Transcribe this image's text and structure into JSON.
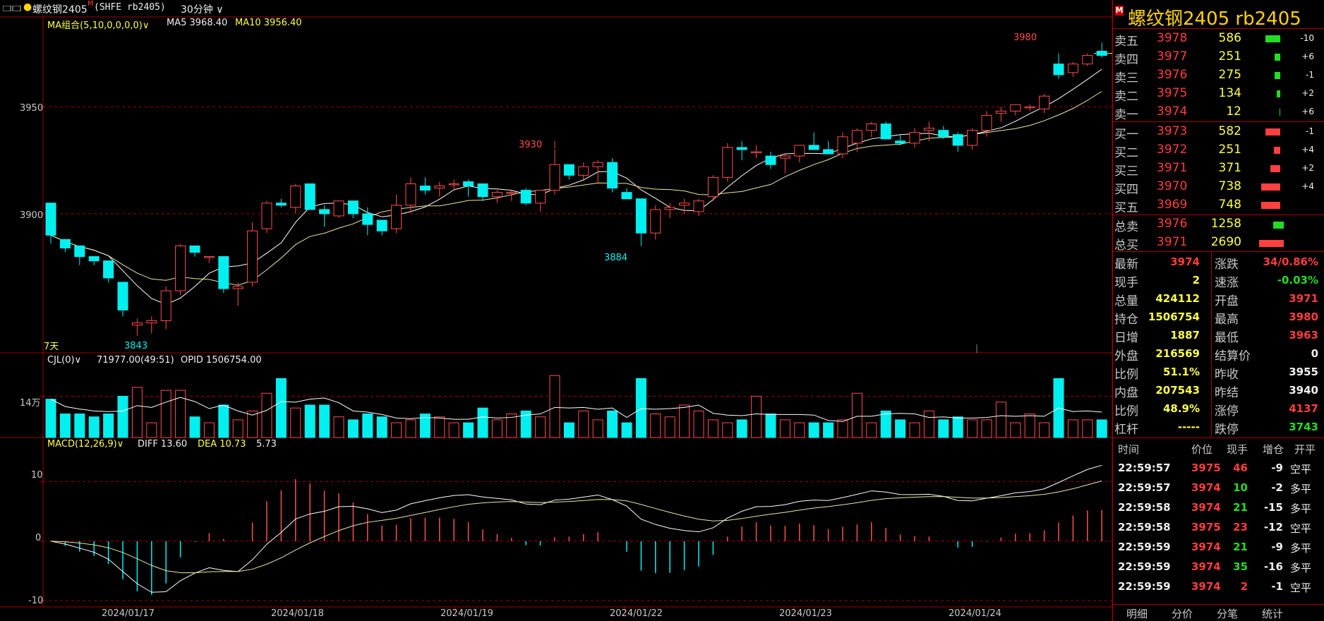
{
  "toolbar": {
    "symbol": "螺纹钢2405",
    "superscript": "M",
    "code": "(SHFE rb2405)",
    "period": "30分钟"
  },
  "main_pane": {
    "indicator_label": "MA组合(5,10,0,0,0,0)",
    "ma5": "MA5 3968.40",
    "ma10": "MA10 3956.40",
    "range_label": "7天",
    "y_ticks": [
      "3950",
      "3900"
    ],
    "markers": {
      "high": "3930",
      "high2": "3980",
      "low": "3843",
      "low2": "3884"
    }
  },
  "volume_pane": {
    "label": "CJL(0)",
    "value": "71977.00(49:51)",
    "opid": "OPID 1506754.00",
    "y_tick": "14万"
  },
  "macd_pane": {
    "label": "MACD(12,26,9)",
    "diff": "DIFF 13.60",
    "dea": "DEA 10.73",
    "macd": "5.73",
    "y_ticks": [
      "10",
      "0",
      "-10"
    ]
  },
  "x_axis": [
    "2024/01/17",
    "2024/01/18",
    "2024/01/19",
    "2024/01/22",
    "2024/01/23",
    "2024/01/24"
  ],
  "chart_data": {
    "type": "candlestick",
    "title": "螺纹钢2405 30分钟",
    "ohlc": [
      [
        3905,
        3905,
        3886,
        3890
      ],
      [
        3888,
        3888,
        3882,
        3884
      ],
      [
        3885,
        3885,
        3876,
        3880
      ],
      [
        3880,
        3880,
        3876,
        3878
      ],
      [
        3878,
        3878,
        3868,
        3870
      ],
      [
        3868,
        3868,
        3852,
        3855
      ],
      [
        3848,
        3851,
        3843,
        3849
      ],
      [
        3849,
        3852,
        3844,
        3850
      ],
      [
        3850,
        3866,
        3846,
        3864
      ],
      [
        3864,
        3886,
        3862,
        3885
      ],
      [
        3885,
        3885,
        3880,
        3882
      ],
      [
        3880,
        3880,
        3877,
        3880
      ],
      [
        3880,
        3880,
        3863,
        3865
      ],
      [
        3865,
        3868,
        3857,
        3866
      ],
      [
        3868,
        3896,
        3866,
        3892
      ],
      [
        3893,
        3906,
        3891,
        3905
      ],
      [
        3905,
        3907,
        3903,
        3904
      ],
      [
        3903,
        3914,
        3900,
        3913
      ],
      [
        3914,
        3914,
        3902,
        3902
      ],
      [
        3902,
        3904,
        3894,
        3900
      ],
      [
        3899,
        3906,
        3898,
        3906
      ],
      [
        3906,
        3906,
        3898,
        3900
      ],
      [
        3900,
        3903,
        3890,
        3895
      ],
      [
        3897,
        3897,
        3890,
        3892
      ],
      [
        3893,
        3909,
        3891,
        3904
      ],
      [
        3904,
        3917,
        3901,
        3914
      ],
      [
        3913,
        3917,
        3909,
        3911
      ],
      [
        3912,
        3915,
        3908,
        3913
      ],
      [
        3914,
        3916,
        3911,
        3914
      ],
      [
        3915,
        3916,
        3908,
        3913
      ],
      [
        3914,
        3914,
        3906,
        3908
      ],
      [
        3908,
        3911,
        3905,
        3910
      ],
      [
        3910,
        3911,
        3906,
        3910
      ],
      [
        3911,
        3912,
        3904,
        3905
      ],
      [
        3905,
        3911,
        3901,
        3911
      ],
      [
        3911,
        3930,
        3909,
        3923
      ],
      [
        3923,
        3923,
        3916,
        3918
      ],
      [
        3918,
        3924,
        3916,
        3922
      ],
      [
        3922,
        3925,
        3914,
        3924
      ],
      [
        3924,
        3926,
        3910,
        3912
      ],
      [
        3910,
        3912,
        3907,
        3907
      ],
      [
        3907,
        3907,
        3885,
        3891
      ],
      [
        3891,
        3904,
        3888,
        3902
      ],
      [
        3902,
        3905,
        3898,
        3903
      ],
      [
        3904,
        3907,
        3900,
        3905
      ],
      [
        3901,
        3907,
        3899,
        3906
      ],
      [
        3908,
        3918,
        3906,
        3917
      ],
      [
        3917,
        3933,
        3915,
        3931
      ],
      [
        3931,
        3934,
        3925,
        3930
      ],
      [
        3929,
        3932,
        3926,
        3929
      ],
      [
        3927,
        3929,
        3921,
        3923
      ],
      [
        3926,
        3928,
        3919,
        3927
      ],
      [
        3927,
        3932,
        3924,
        3932
      ],
      [
        3932,
        3938,
        3931,
        3930
      ],
      [
        3930,
        3934,
        3928,
        3928
      ],
      [
        3928,
        3938,
        3926,
        3936
      ],
      [
        3933,
        3940,
        3929,
        3939
      ],
      [
        3939,
        3943,
        3936,
        3942
      ],
      [
        3942,
        3943,
        3935,
        3935
      ],
      [
        3934,
        3937,
        3932,
        3933
      ],
      [
        3933,
        3940,
        3931,
        3938
      ],
      [
        3939,
        3943,
        3934,
        3940
      ],
      [
        3939,
        3941,
        3935,
        3936
      ],
      [
        3937,
        3938,
        3929,
        3932
      ],
      [
        3932,
        3940,
        3930,
        3939
      ],
      [
        3939,
        3948,
        3936,
        3946
      ],
      [
        3947,
        3950,
        3943,
        3948
      ],
      [
        3948,
        3951,
        3946,
        3951
      ],
      [
        3950,
        3951,
        3948,
        3950
      ],
      [
        3949,
        3956,
        3947,
        3955
      ],
      [
        3970,
        3975,
        3963,
        3965
      ],
      [
        3966,
        3971,
        3964,
        3970
      ],
      [
        3970,
        3975,
        3969,
        3974
      ],
      [
        3976,
        3980,
        3973,
        3974
      ]
    ],
    "volume_10k": [
      13,
      8,
      8,
      7,
      8,
      14,
      17,
      5,
      16,
      16,
      7,
      5,
      11,
      6,
      9,
      15,
      20,
      10,
      11,
      11,
      7,
      6,
      8,
      7,
      5,
      6,
      8,
      7,
      5,
      5,
      10,
      6,
      8,
      9,
      7,
      21,
      5,
      9,
      6,
      9,
      5,
      20,
      8,
      7,
      11,
      9,
      6,
      5,
      6,
      14,
      8,
      6,
      5,
      5,
      5,
      6,
      15,
      5,
      9,
      6,
      5,
      9,
      6,
      7,
      6,
      6,
      12,
      5,
      8,
      5,
      20,
      6,
      6,
      6
    ],
    "ma5": [],
    "macd": {
      "diff_last": 13.6,
      "dea_last": 10.73,
      "macd_last": 5.73
    }
  },
  "quote": {
    "title": "螺纹钢2405  rb2405",
    "title_badge": "M",
    "asks": [
      {
        "label": "卖五",
        "price": "3978",
        "vol": "586",
        "chg": "-10",
        "bar": 0.45,
        "color": "grn"
      },
      {
        "label": "卖四",
        "price": "3977",
        "vol": "251",
        "chg": "+6",
        "bar": 0.18,
        "color": "grn"
      },
      {
        "label": "卖三",
        "price": "3976",
        "vol": "275",
        "chg": "-1",
        "bar": 0.18,
        "color": "grn"
      },
      {
        "label": "卖二",
        "price": "3975",
        "vol": "134",
        "chg": "+2",
        "bar": 0.1,
        "color": "grn"
      },
      {
        "label": "卖一",
        "price": "3974",
        "vol": "12",
        "chg": "+6",
        "bar": 0.02,
        "color": "grn"
      }
    ],
    "bids": [
      {
        "label": "买一",
        "price": "3973",
        "vol": "582",
        "chg": "-1",
        "bar": 0.45,
        "color": "red"
      },
      {
        "label": "买二",
        "price": "3972",
        "vol": "251",
        "chg": "+4",
        "bar": 0.2,
        "color": "red"
      },
      {
        "label": "买三",
        "price": "3971",
        "vol": "371",
        "chg": "+2",
        "bar": 0.3,
        "color": "red"
      },
      {
        "label": "买四",
        "price": "3970",
        "vol": "738",
        "chg": "+4",
        "bar": 0.58,
        "color": "red"
      },
      {
        "label": "买五",
        "price": "3969",
        "vol": "748",
        "chg": "",
        "bar": 0.58,
        "color": "red"
      }
    ],
    "totals": [
      {
        "label": "总卖",
        "price": "3976",
        "vol": "1258",
        "bar": 0.3,
        "color": "grn"
      },
      {
        "label": "总买",
        "price": "3971",
        "vol": "2690",
        "bar": 0.7,
        "color": "red"
      }
    ],
    "stats": [
      {
        "l1": "最新",
        "v1": "3974",
        "c1": "red",
        "l2": "涨跌",
        "v2": "34/0.86%",
        "c2": "red"
      },
      {
        "l1": "现手",
        "v1": "2",
        "c1": "yel",
        "l2": "速涨",
        "v2": "-0.03%",
        "c2": "grn"
      },
      {
        "l1": "总量",
        "v1": "424112",
        "c1": "yel",
        "l2": "开盘",
        "v2": "3971",
        "c2": "red"
      },
      {
        "l1": "持仓",
        "v1": "1506754",
        "c1": "yel",
        "l2": "最高",
        "v2": "3980",
        "c2": "red"
      },
      {
        "l1": "日增",
        "v1": "1887",
        "c1": "yel",
        "l2": "最低",
        "v2": "3963",
        "c2": "red"
      },
      {
        "l1": "外盘",
        "v1": "216569",
        "c1": "yel",
        "l2": "结算价",
        "v2": "0",
        "c2": "wht"
      },
      {
        "l1": "比例",
        "v1": "51.1%",
        "c1": "yel",
        "l2": "昨收",
        "v2": "3955",
        "c2": "wht"
      },
      {
        "l1": "内盘",
        "v1": "207543",
        "c1": "yel",
        "l2": "昨结",
        "v2": "3940",
        "c2": "wht"
      },
      {
        "l1": "比例",
        "v1": "48.9%",
        "c1": "yel",
        "l2": "涨停",
        "v2": "4137",
        "c2": "red"
      },
      {
        "l1": "杠杆",
        "v1": "-----",
        "c1": "yel",
        "l2": "跌停",
        "v2": "3743",
        "c2": "grn"
      }
    ],
    "ticks_header": [
      "时间",
      "价位",
      "现手",
      "增仓",
      "开平"
    ],
    "ticks": [
      {
        "time": "22:59:57",
        "price": "3975",
        "vol": "46",
        "vc": "red",
        "oi": "-9",
        "type": "空平"
      },
      {
        "time": "22:59:57",
        "price": "3974",
        "vol": "10",
        "vc": "grn",
        "oi": "-2",
        "type": "多平"
      },
      {
        "time": "22:59:58",
        "price": "3974",
        "vol": "21",
        "vc": "grn",
        "oi": "-15",
        "type": "多平"
      },
      {
        "time": "22:59:58",
        "price": "3975",
        "vol": "23",
        "vc": "red",
        "oi": "-12",
        "type": "空平"
      },
      {
        "time": "22:59:59",
        "price": "3974",
        "vol": "21",
        "vc": "grn",
        "oi": "-9",
        "type": "多平"
      },
      {
        "time": "22:59:59",
        "price": "3974",
        "vol": "35",
        "vc": "grn",
        "oi": "-16",
        "type": "多平"
      },
      {
        "time": "22:59:59",
        "price": "3974",
        "vol": "2",
        "vc": "red",
        "oi": "-1",
        "type": "空平"
      }
    ],
    "tabs": [
      "明细",
      "分价",
      "分笔",
      "统计"
    ]
  },
  "colors": {
    "up": "#ff4d4d",
    "down": "#00f0f0",
    "ma5": "#ffffff",
    "ma10": "#e8e8a0",
    "grid": "#a00000",
    "text_yellow": "#ffff44"
  }
}
